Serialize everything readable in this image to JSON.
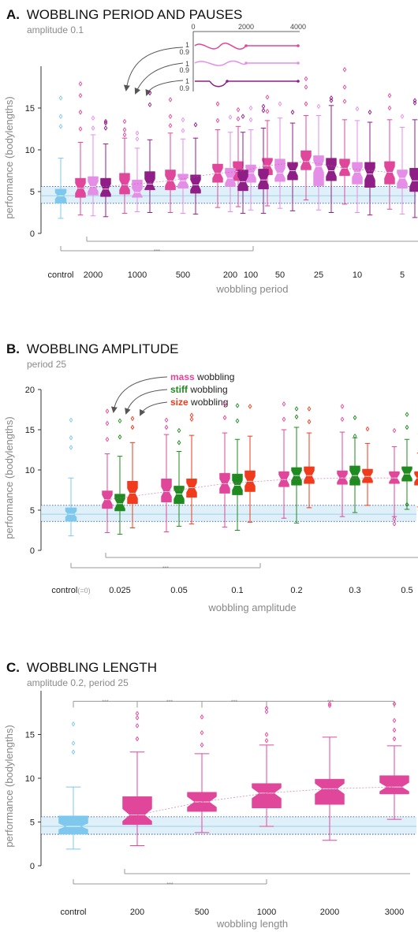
{
  "panels": {
    "a": {
      "letter": "A.",
      "title": "WOBBLING PERIOD AND PAUSES",
      "subtitle": "amplitude 0.1"
    },
    "b": {
      "letter": "B.",
      "title": "WOBBLING AMPLITUDE",
      "subtitle": "period 25"
    },
    "c": {
      "letter": "C.",
      "title": "WOBBLING LENGTH",
      "subtitle": "amplitude 0.2, period 25"
    }
  },
  "inset": {
    "x_ticks": [
      "0",
      "2000",
      "4000"
    ],
    "y_ticks": [
      "1",
      "0.9"
    ]
  },
  "legend_b": [
    {
      "word": "mass",
      "suffix": " wobbling",
      "color": "#e0479a"
    },
    {
      "word": "stiff",
      "suffix": " wobbling",
      "color": "#1f8a1f"
    },
    {
      "word": "size",
      "suffix": " wobbling",
      "color": "#f03b1c"
    }
  ],
  "sig_label": "***",
  "colors": {
    "control": "#7ec8ee",
    "mass": "#e0479a",
    "mass_light": "#e48ee8",
    "mass_dark": "#8f1f86",
    "stiff": "#1f8a1f",
    "size": "#f03b1c",
    "band": "#d7ecf8",
    "dotted": "#1f3c9e"
  },
  "chart_data": [
    {
      "type": "box",
      "title": "WOBBLING PERIOD AND PAUSES",
      "subtitle": "amplitude 0.1",
      "xlabel": "wobbling period",
      "ylabel": "performance (bodylengths)",
      "categories": [
        "control",
        "2000",
        "1000",
        "500",
        "200",
        "100",
        "50",
        "25",
        "10",
        "5"
      ],
      "ylim": [
        0,
        20
      ],
      "yticks": [
        0,
        5,
        10,
        15
      ],
      "series": [
        {
          "color": "#7ec8ee",
          "boxes": [
            {
              "cat": 0,
              "q1": 3.6,
              "median": 4.5,
              "q3": 5.3,
              "lo": 1.8,
              "hi": 9.0,
              "notch": 0.35,
              "out": [
                12.8,
                14.0,
                16.2
              ]
            }
          ]
        },
        {
          "color": "#e0479a",
          "boxes": [
            {
              "cat": 1,
              "q1": 4.3,
              "median": 5.4,
              "q3": 6.6,
              "lo": 2.2,
              "hi": 10.9,
              "notch": 0.6,
              "out": [
                12.5,
                14.5,
                16.5,
                17.9
              ]
            },
            {
              "cat": 2,
              "q1": 4.7,
              "median": 5.8,
              "q3": 7.2,
              "lo": 2.4,
              "hi": 11.4,
              "notch": 0.6,
              "out": [
                11.8,
                12.4,
                13.4
              ]
            },
            {
              "cat": 3,
              "q1": 5.2,
              "median": 6.3,
              "q3": 7.6,
              "lo": 2.5,
              "hi": 12.0,
              "notch": 0.6,
              "out": [
                12.9,
                14.0,
                16.0
              ]
            },
            {
              "cat": 4,
              "q1": 6.1,
              "median": 7.2,
              "q3": 8.3,
              "lo": 3.1,
              "hi": 12.4,
              "notch": 0.6,
              "out": [
                13.5,
                15.5
              ]
            },
            {
              "cat": 5,
              "q1": 6.3,
              "median": 7.4,
              "q3": 8.6,
              "lo": 3.2,
              "hi": 12.8,
              "notch": 0.6,
              "out": [
                13.7,
                14.8
              ]
            },
            {
              "cat": 6,
              "q1": 7.0,
              "median": 8.1,
              "q3": 9.0,
              "lo": 3.3,
              "hi": 13.5,
              "notch": 0.6,
              "out": [
                14.6,
                16.3
              ]
            },
            {
              "cat": 7,
              "q1": 7.6,
              "median": 8.6,
              "q3": 9.9,
              "lo": 4.0,
              "hi": 14.1,
              "notch": 0.6,
              "out": [
                15.5,
                17.5,
                18.5
              ]
            },
            {
              "cat": 8,
              "q1": 6.9,
              "median": 7.8,
              "q3": 8.9,
              "lo": 3.5,
              "hi": 13.6,
              "notch": 0.6,
              "out": [
                15.8,
                17.5,
                19.6
              ]
            },
            {
              "cat": 9,
              "q1": 5.9,
              "median": 7.3,
              "q3": 8.6,
              "lo": 2.9,
              "hi": 13.6,
              "notch": 0.7,
              "out": [
                15.0,
                16.5
              ]
            }
          ]
        },
        {
          "color": "#e48ee8",
          "boxes": [
            {
              "cat": 1,
              "q1": 4.6,
              "median": 5.6,
              "q3": 6.8,
              "lo": 2.1,
              "hi": 11.8,
              "notch": 0.6,
              "out": [
                12.6,
                13.8
              ]
            },
            {
              "cat": 2,
              "q1": 4.3,
              "median": 4.9,
              "q3": 6.4,
              "lo": 2.6,
              "hi": 10.2,
              "notch": 0.5,
              "out": [
                11.3,
                12.0
              ]
            },
            {
              "cat": 3,
              "q1": 5.4,
              "median": 6.3,
              "q3": 7.1,
              "lo": 2.4,
              "hi": 11.3,
              "notch": 0.5,
              "out": [
                12.3,
                13.6
              ]
            },
            {
              "cat": 4,
              "q1": 5.6,
              "median": 6.6,
              "q3": 7.8,
              "lo": 2.6,
              "hi": 12.1,
              "notch": 0.6,
              "out": [
                13.9
              ]
            },
            {
              "cat": 5,
              "q1": 6.1,
              "median": 7.2,
              "q3": 8.2,
              "lo": 2.8,
              "hi": 12.4,
              "notch": 0.6,
              "out": [
                13.6,
                15.0
              ]
            },
            {
              "cat": 6,
              "q1": 6.2,
              "median": 7.2,
              "q3": 8.9,
              "lo": 3.0,
              "hi": 13.8,
              "notch": 0.6,
              "out": [
                15.5
              ]
            },
            {
              "cat": 7,
              "q1": 5.7,
              "median": 8.0,
              "q3": 9.3,
              "lo": 2.8,
              "hi": 14.1,
              "notch": 0.7,
              "out": [
                15.2
              ]
            },
            {
              "cat": 8,
              "q1": 5.9,
              "median": 7.3,
              "q3": 8.5,
              "lo": 2.5,
              "hi": 13.5,
              "notch": 0.6,
              "out": [
                14.9
              ]
            },
            {
              "cat": 9,
              "q1": 5.4,
              "median": 6.6,
              "q3": 7.6,
              "lo": 2.3,
              "hi": 12.7,
              "notch": 0.6,
              "out": [
                14.0
              ]
            }
          ]
        },
        {
          "color": "#8f1f86",
          "boxes": [
            {
              "cat": 1,
              "q1": 4.4,
              "median": 5.3,
              "q3": 6.6,
              "lo": 2.0,
              "hi": 10.7,
              "notch": 0.6,
              "out": [
                12.6,
                13.2,
                13.4
              ]
            },
            {
              "cat": 2,
              "q1": 5.2,
              "median": 5.9,
              "q3": 7.4,
              "lo": 2.5,
              "hi": 11.2,
              "notch": 0.6,
              "out": [
                15.4,
                16.8
              ]
            },
            {
              "cat": 3,
              "q1": 4.8,
              "median": 5.8,
              "q3": 7.0,
              "lo": 2.3,
              "hi": 11.4,
              "notch": 0.6,
              "out": [
                13.0
              ]
            },
            {
              "cat": 4,
              "q1": 5.1,
              "median": 6.2,
              "q3": 7.6,
              "lo": 2.4,
              "hi": 12.1,
              "notch": 0.6,
              "out": [
                14.0
              ]
            },
            {
              "cat": 5,
              "q1": 5.3,
              "median": 6.4,
              "q3": 7.7,
              "lo": 2.4,
              "hi": 12.6,
              "notch": 0.6,
              "out": [
                14.7,
                15.2
              ]
            },
            {
              "cat": 6,
              "q1": 6.4,
              "median": 7.5,
              "q3": 8.5,
              "lo": 2.7,
              "hi": 13.2,
              "notch": 0.6,
              "out": [
                14.5
              ]
            },
            {
              "cat": 7,
              "q1": 6.3,
              "median": 7.5,
              "q3": 9.0,
              "lo": 2.5,
              "hi": 15.3,
              "notch": 0.7,
              "out": [
                15.9,
                16.2
              ]
            },
            {
              "cat": 8,
              "q1": 5.5,
              "median": 7.1,
              "q3": 8.5,
              "lo": 2.2,
              "hi": 13.3,
              "notch": 0.7,
              "out": [
                14.5
              ]
            },
            {
              "cat": 9,
              "q1": 5.0,
              "median": 6.3,
              "q3": 7.8,
              "lo": 1.9,
              "hi": 13.6,
              "notch": 0.7,
              "out": [
                15.6,
                15.9
              ]
            }
          ]
        }
      ],
      "control_band": {
        "median": 4.5,
        "ci": [
          3.6,
          5.6
        ]
      }
    },
    {
      "type": "box",
      "title": "WOBBLING AMPLITUDE",
      "subtitle": "period 25",
      "xlabel": "wobbling amplitude",
      "ylabel": "performance (bodylengths)",
      "categories": [
        "control",
        "0.025",
        "0.05",
        "0.1",
        "0.2",
        "0.3",
        "0.5"
      ],
      "control_suffix": "(=0)",
      "ylim": [
        0,
        20
      ],
      "yticks": [
        0,
        5,
        10,
        15,
        20
      ],
      "series": [
        {
          "name": "control",
          "color": "#7ec8ee",
          "boxes": [
            {
              "cat": 0,
              "q1": 3.6,
              "median": 4.5,
              "q3": 5.3,
              "lo": 1.8,
              "hi": 9.0,
              "notch": 0.35,
              "out": [
                12.8,
                14.0,
                16.2
              ]
            }
          ]
        },
        {
          "name": "mass wobbling",
          "color": "#e0479a",
          "boxes": [
            {
              "cat": 1,
              "q1": 5.2,
              "median": 6.3,
              "q3": 7.4,
              "lo": 2.2,
              "hi": 12.0,
              "notch": 0.6,
              "out": [
                13.8,
                15.8,
                17.3
              ]
            },
            {
              "cat": 2,
              "q1": 6.0,
              "median": 7.3,
              "q3": 8.9,
              "lo": 2.3,
              "hi": 14.4,
              "notch": 0.6,
              "out": [
                15.3,
                16.2
              ]
            },
            {
              "cat": 3,
              "q1": 7.1,
              "median": 8.3,
              "q3": 9.6,
              "lo": 2.9,
              "hi": 14.6,
              "notch": 0.6,
              "out": [
                16.5,
                18.2
              ]
            },
            {
              "cat": 4,
              "q1": 7.9,
              "median": 8.8,
              "q3": 9.8,
              "lo": 4.0,
              "hi": 15.0,
              "notch": 0.6,
              "out": [
                16.3,
                18.2
              ]
            },
            {
              "cat": 5,
              "q1": 8.2,
              "median": 9.0,
              "q3": 9.9,
              "lo": 4.2,
              "hi": 14.7,
              "notch": 0.5,
              "out": [
                16.3,
                17.9
              ]
            },
            {
              "cat": 6,
              "q1": 8.3,
              "median": 9.0,
              "q3": 9.8,
              "lo": 4.2,
              "hi": 12.9,
              "notch": 0.5,
              "out": [
                3.9,
                3.3,
                14.9
              ]
            }
          ]
        },
        {
          "name": "stiff wobbling",
          "color": "#1f8a1f",
          "boxes": [
            {
              "cat": 1,
              "q1": 4.9,
              "median": 5.8,
              "q3": 7.0,
              "lo": 2.0,
              "hi": 11.7,
              "notch": 0.6,
              "out": [
                14.1,
                16.1
              ]
            },
            {
              "cat": 2,
              "q1": 5.8,
              "median": 7.0,
              "q3": 8.0,
              "lo": 3.0,
              "hi": 12.3,
              "notch": 0.6,
              "out": [
                13.4,
                14.9
              ]
            },
            {
              "cat": 3,
              "q1": 6.9,
              "median": 8.1,
              "q3": 9.5,
              "lo": 2.5,
              "hi": 13.8,
              "notch": 0.6,
              "out": [
                16.1,
                18.0
              ]
            },
            {
              "cat": 4,
              "q1": 8.1,
              "median": 9.3,
              "q3": 10.3,
              "lo": 3.4,
              "hi": 15.3,
              "notch": 0.6,
              "out": [
                16.6,
                17.6
              ]
            },
            {
              "cat": 5,
              "q1": 8.1,
              "median": 9.3,
              "q3": 10.5,
              "lo": 4.7,
              "hi": 14.0,
              "notch": 0.6,
              "out": [
                14.2,
                16.5
              ]
            },
            {
              "cat": 6,
              "q1": 8.6,
              "median": 9.5,
              "q3": 10.4,
              "lo": 5.1,
              "hi": 13.8,
              "notch": 0.6,
              "out": [
                5.7,
                15.3,
                16.9
              ]
            }
          ]
        },
        {
          "name": "size wobbling",
          "color": "#f03b1c",
          "boxes": [
            {
              "cat": 1,
              "q1": 5.8,
              "median": 7.1,
              "q3": 8.6,
              "lo": 2.8,
              "hi": 13.4,
              "notch": 0.6,
              "out": [
                15.3,
                16.4
              ]
            },
            {
              "cat": 2,
              "q1": 6.6,
              "median": 7.8,
              "q3": 8.9,
              "lo": 3.3,
              "hi": 14.3,
              "notch": 0.6,
              "out": [
                16.3,
                16.8
              ]
            },
            {
              "cat": 3,
              "q1": 7.3,
              "median": 8.6,
              "q3": 9.9,
              "lo": 3.5,
              "hi": 14.2,
              "notch": 0.6,
              "out": [
                17.9
              ]
            },
            {
              "cat": 4,
              "q1": 8.3,
              "median": 9.3,
              "q3": 10.4,
              "lo": 5.3,
              "hi": 14.6,
              "notch": 0.6,
              "out": [
                16.0,
                17.6
              ]
            },
            {
              "cat": 5,
              "q1": 8.4,
              "median": 9.2,
              "q3": 10.1,
              "lo": 5.6,
              "hi": 13.3,
              "notch": 0.5,
              "out": [
                15.1
              ]
            },
            {
              "cat": 6,
              "q1": 8.1,
              "median": 9.0,
              "q3": 9.8,
              "lo": 5.4,
              "hi": 12.1,
              "notch": 0.5,
              "out": [
                5.0,
                14.5
              ]
            }
          ]
        }
      ],
      "control_band": {
        "median": 4.5,
        "ci": [
          3.6,
          5.6
        ]
      }
    },
    {
      "type": "box",
      "title": "WOBBLING LENGTH",
      "subtitle": "amplitude 0.2, period 25",
      "xlabel": "wobbling length",
      "ylabel": "performance (bodylengths)",
      "categories": [
        "control",
        "200",
        "500",
        "1000",
        "2000",
        "3000"
      ],
      "ylim": [
        0,
        20
      ],
      "yticks": [
        0,
        5,
        10,
        15
      ],
      "series": [
        {
          "color": "#7ec8ee",
          "boxes": [
            {
              "cat": 0,
              "q1": 3.6,
              "median": 4.5,
              "q3": 5.7,
              "lo": 1.9,
              "hi": 9.0,
              "notch": 0.35,
              "out": [
                13.0,
                14.0,
                16.2
              ]
            }
          ]
        },
        {
          "color": "#e0479a",
          "boxes": [
            {
              "cat": 1,
              "q1": 4.7,
              "median": 5.8,
              "q3": 7.9,
              "lo": 2.3,
              "hi": 13.0,
              "notch": 0.7,
              "out": [
                14.5,
                16.0,
                16.9,
                17.4
              ]
            },
            {
              "cat": 2,
              "q1": 6.2,
              "median": 7.3,
              "q3": 8.4,
              "lo": 3.8,
              "hi": 12.8,
              "notch": 0.6,
              "out": [
                13.8,
                15.2,
                17.0
              ]
            },
            {
              "cat": 3,
              "q1": 6.6,
              "median": 8.3,
              "q3": 9.4,
              "lo": 4.5,
              "hi": 13.8,
              "notch": 0.6,
              "out": [
                14.3,
                15.0,
                17.6,
                18.0
              ]
            },
            {
              "cat": 4,
              "q1": 7.0,
              "median": 8.8,
              "q3": 9.9,
              "lo": 2.9,
              "hi": 14.7,
              "notch": 0.6,
              "out": [
                18.3,
                18.5
              ]
            },
            {
              "cat": 5,
              "q1": 8.2,
              "median": 9.0,
              "q3": 10.3,
              "lo": 5.3,
              "hi": 13.7,
              "notch": 0.5,
              "out": [
                14.5,
                15.5,
                16.6,
                18.5
              ]
            }
          ]
        }
      ],
      "control_band": {
        "median": 4.5,
        "ci": [
          3.6,
          5.6
        ]
      }
    }
  ]
}
